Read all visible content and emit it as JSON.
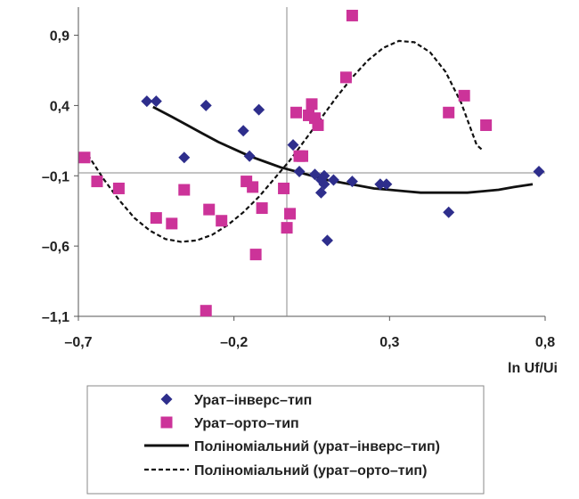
{
  "chart_data": {
    "type": "scatter",
    "xlabel": "ln Uf/Ui",
    "ylabel": "",
    "xlim": [
      -0.7,
      0.8
    ],
    "ylim": [
      -1.1,
      1.1
    ],
    "x_ticks": [
      -0.7,
      -0.2,
      0.3,
      0.8
    ],
    "x_tick_labels": [
      "–0,7",
      "–0,2",
      "0,3",
      "0,8"
    ],
    "y_ticks": [
      -1.1,
      -0.6,
      -0.1,
      0.4,
      0.9
    ],
    "y_tick_labels": [
      "–1,1",
      "–0,6",
      "–0,1",
      "0,4",
      "0,9"
    ],
    "grid": false,
    "zero_lines": true,
    "legend_position": "bottom",
    "series": [
      {
        "name": "Урат–інверс–тип",
        "marker": "diamond",
        "color": "#2E2E8C",
        "points": [
          [
            -0.48,
            0.43
          ],
          [
            -0.45,
            0.43
          ],
          [
            -0.36,
            0.03
          ],
          [
            -0.29,
            0.4
          ],
          [
            -0.17,
            0.22
          ],
          [
            -0.15,
            0.04
          ],
          [
            -0.12,
            0.37
          ],
          [
            -0.01,
            0.12
          ],
          [
            0.01,
            -0.07
          ],
          [
            0.06,
            -0.09
          ],
          [
            0.08,
            -0.13
          ],
          [
            0.08,
            -0.22
          ],
          [
            0.09,
            -0.1
          ],
          [
            0.09,
            -0.16
          ],
          [
            0.1,
            -0.56
          ],
          [
            0.12,
            -0.13
          ],
          [
            0.18,
            -0.14
          ],
          [
            0.27,
            -0.16
          ],
          [
            0.29,
            -0.16
          ],
          [
            0.49,
            -0.36
          ],
          [
            0.78,
            -0.07
          ]
        ]
      },
      {
        "name": "Урат–орто–тип",
        "marker": "square",
        "color": "#CC3399",
        "points": [
          [
            -0.68,
            0.03
          ],
          [
            -0.64,
            -0.14
          ],
          [
            -0.57,
            -0.19
          ],
          [
            -0.45,
            -0.4
          ],
          [
            -0.4,
            -0.44
          ],
          [
            -0.36,
            -0.2
          ],
          [
            -0.29,
            -1.06
          ],
          [
            -0.28,
            -0.34
          ],
          [
            -0.24,
            -0.42
          ],
          [
            -0.16,
            -0.14
          ],
          [
            -0.14,
            -0.18
          ],
          [
            -0.13,
            -0.66
          ],
          [
            -0.11,
            -0.33
          ],
          [
            -0.04,
            -0.19
          ],
          [
            -0.03,
            -0.47
          ],
          [
            -0.02,
            -0.37
          ],
          [
            0.0,
            0.35
          ],
          [
            0.01,
            0.04
          ],
          [
            0.02,
            0.04
          ],
          [
            0.04,
            0.33
          ],
          [
            0.05,
            0.41
          ],
          [
            0.06,
            0.31
          ],
          [
            0.07,
            0.26
          ],
          [
            0.16,
            0.6
          ],
          [
            0.18,
            1.04
          ],
          [
            0.49,
            0.35
          ],
          [
            0.54,
            0.47
          ],
          [
            0.61,
            0.26
          ]
        ]
      },
      {
        "name": "Поліноміальний (урат–інверс–тип)",
        "type": "line",
        "style": "solid",
        "color": "#111111",
        "points": [
          [
            -0.46,
            0.39
          ],
          [
            -0.4,
            0.32
          ],
          [
            -0.35,
            0.26
          ],
          [
            -0.3,
            0.2
          ],
          [
            -0.25,
            0.14
          ],
          [
            -0.2,
            0.09
          ],
          [
            -0.15,
            0.04
          ],
          [
            -0.1,
            0.0
          ],
          [
            -0.05,
            -0.04
          ],
          [
            0.0,
            -0.07
          ],
          [
            0.05,
            -0.1
          ],
          [
            0.1,
            -0.13
          ],
          [
            0.15,
            -0.15
          ],
          [
            0.2,
            -0.17
          ],
          [
            0.25,
            -0.19
          ],
          [
            0.3,
            -0.2
          ],
          [
            0.35,
            -0.21
          ],
          [
            0.4,
            -0.22
          ],
          [
            0.45,
            -0.22
          ],
          [
            0.5,
            -0.22
          ],
          [
            0.55,
            -0.22
          ],
          [
            0.6,
            -0.21
          ],
          [
            0.65,
            -0.2
          ],
          [
            0.7,
            -0.18
          ],
          [
            0.76,
            -0.16
          ]
        ]
      },
      {
        "name": "Поліноміальний (урат–орто–тип)",
        "type": "line",
        "style": "dashed",
        "color": "#111111",
        "points": [
          [
            -0.67,
            0.05
          ],
          [
            -0.62,
            -0.12
          ],
          [
            -0.57,
            -0.27
          ],
          [
            -0.52,
            -0.4
          ],
          [
            -0.47,
            -0.49
          ],
          [
            -0.42,
            -0.55
          ],
          [
            -0.37,
            -0.57
          ],
          [
            -0.32,
            -0.56
          ],
          [
            -0.27,
            -0.52
          ],
          [
            -0.22,
            -0.45
          ],
          [
            -0.17,
            -0.36
          ],
          [
            -0.12,
            -0.25
          ],
          [
            -0.07,
            -0.12
          ],
          [
            -0.02,
            0.01
          ],
          [
            0.03,
            0.16
          ],
          [
            0.08,
            0.31
          ],
          [
            0.13,
            0.46
          ],
          [
            0.18,
            0.6
          ],
          [
            0.23,
            0.72
          ],
          [
            0.28,
            0.81
          ],
          [
            0.33,
            0.86
          ],
          [
            0.38,
            0.85
          ],
          [
            0.43,
            0.78
          ],
          [
            0.48,
            0.64
          ],
          [
            0.53,
            0.42
          ],
          [
            0.58,
            0.12
          ],
          [
            0.6,
            0.08
          ]
        ]
      }
    ]
  }
}
